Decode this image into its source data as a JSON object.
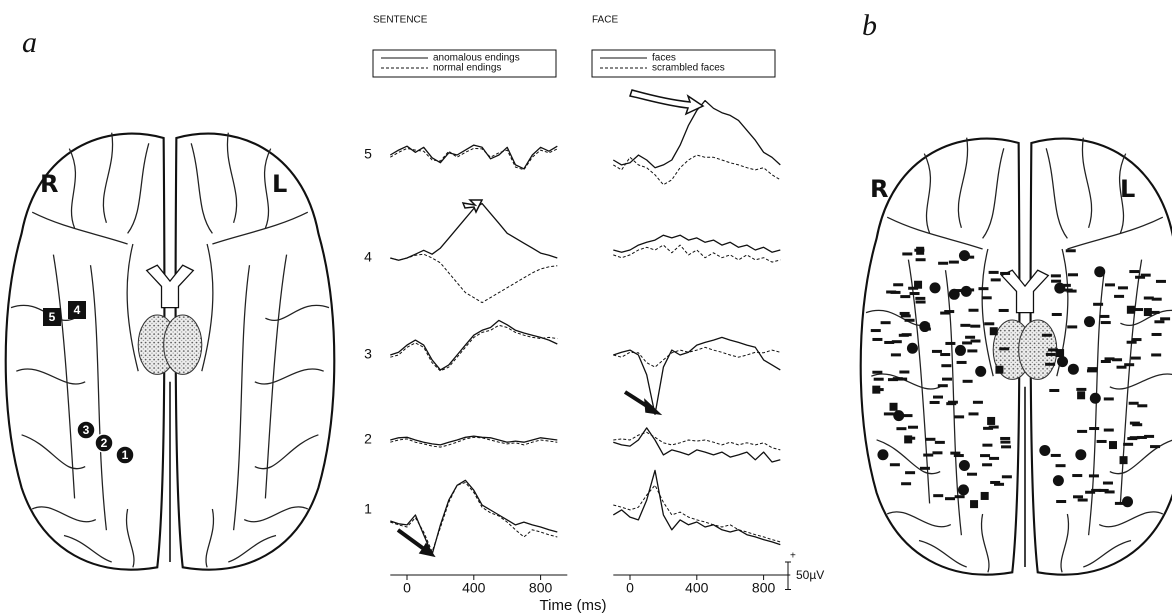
{
  "panel_labels": [
    "a",
    "b"
  ],
  "hemisphere_labels": [
    "R",
    "L"
  ],
  "electrodes": [
    "5",
    "4",
    "3",
    "2",
    "1"
  ],
  "xlabel": "Time (ms)",
  "scale_bar": {
    "value": 50,
    "label": "50µV",
    "sign": "+"
  },
  "chart_data": [
    {
      "type": "line",
      "title": "SENTENCE",
      "x": [
        -100,
        -50,
        0,
        50,
        100,
        150,
        200,
        250,
        300,
        350,
        400,
        450,
        500,
        550,
        600,
        650,
        700,
        750,
        800,
        850,
        900
      ],
      "xlim": [
        -100,
        900
      ],
      "xticks": [
        0,
        400,
        800
      ],
      "series": [
        {
          "name": "anomalous endings",
          "color": "#111111",
          "dashed": false,
          "values": [
            [
              0,
              9,
              16,
              5,
              14,
              -5,
              -14,
              4,
              0,
              9,
              18,
              14,
              -7,
              0,
              14,
              -18,
              -25,
              0,
              14,
              7,
              16
            ],
            [
              0,
              -4,
              0,
              7,
              14,
              7,
              18,
              36,
              54,
              72,
              90,
              99,
              81,
              63,
              45,
              36,
              27,
              18,
              9,
              5,
              0
            ],
            [
              0,
              5,
              18,
              27,
              18,
              -9,
              -27,
              -18,
              0,
              18,
              36,
              45,
              50,
              63,
              55,
              45,
              40,
              36,
              32,
              27,
              20
            ],
            [
              0,
              4,
              5,
              0,
              -4,
              -7,
              -9,
              -4,
              0,
              5,
              7,
              5,
              4,
              0,
              -4,
              -2,
              -4,
              0,
              4,
              2,
              0
            ],
            [
              -20,
              -25,
              -27,
              -9,
              -45,
              -81,
              -27,
              18,
              45,
              54,
              36,
              9,
              0,
              -9,
              -18,
              -27,
              -22,
              -27,
              -31,
              -36,
              -40
            ]
          ]
        },
        {
          "name": "normal endings",
          "color": "#111111",
          "dashed": true,
          "values": [
            [
              -4,
              5,
              12,
              9,
              7,
              -9,
              -11,
              7,
              -4,
              5,
              12,
              11,
              -4,
              4,
              9,
              -22,
              -27,
              -4,
              9,
              4,
              11
            ],
            [
              0,
              -4,
              0,
              5,
              7,
              0,
              -9,
              -27,
              -45,
              -63,
              -72,
              -81,
              -72,
              -63,
              -54,
              -45,
              -36,
              -27,
              -20,
              -16,
              -14
            ],
            [
              -4,
              0,
              14,
              22,
              14,
              -14,
              -29,
              -22,
              -4,
              14,
              32,
              41,
              45,
              54,
              50,
              41,
              36,
              32,
              30,
              32,
              30
            ],
            [
              -4,
              0,
              2,
              -4,
              -7,
              -11,
              -13,
              -9,
              -4,
              2,
              5,
              4,
              0,
              -4,
              -7,
              -5,
              -9,
              -4,
              0,
              -2,
              -4
            ],
            [
              -22,
              -27,
              -31,
              -14,
              -40,
              -76,
              -32,
              14,
              45,
              50,
              32,
              5,
              -5,
              -11,
              -22,
              -36,
              -49,
              -36,
              -40,
              -45,
              -49
            ]
          ]
        }
      ]
    },
    {
      "type": "line",
      "title": "FACE",
      "x": [
        -100,
        -50,
        0,
        50,
        100,
        150,
        200,
        250,
        300,
        350,
        400,
        450,
        500,
        550,
        600,
        650,
        700,
        750,
        800,
        850,
        900
      ],
      "xlim": [
        -100,
        900
      ],
      "xticks": [
        0,
        400,
        800
      ],
      "series": [
        {
          "name": "faces",
          "color": "#111111",
          "dashed": false,
          "values": [
            [
              0,
              -9,
              -5,
              9,
              0,
              -14,
              -9,
              0,
              27,
              63,
              90,
              108,
              94,
              86,
              81,
              72,
              54,
              36,
              14,
              5,
              -9
            ],
            [
              0,
              -4,
              0,
              9,
              14,
              18,
              27,
              22,
              27,
              18,
              22,
              14,
              18,
              9,
              14,
              5,
              9,
              0,
              5,
              -4,
              0
            ],
            [
              0,
              5,
              9,
              0,
              -36,
              -108,
              -22,
              9,
              0,
              5,
              18,
              23,
              27,
              32,
              27,
              23,
              18,
              14,
              -9,
              -18,
              -27
            ],
            [
              -4,
              -9,
              -11,
              0,
              22,
              0,
              -27,
              -18,
              -22,
              -27,
              -18,
              -22,
              -27,
              -22,
              -31,
              -27,
              -22,
              -36,
              -22,
              -40,
              -36
            ],
            [
              -18,
              -9,
              -22,
              -27,
              9,
              63,
              -18,
              -45,
              -27,
              -36,
              -31,
              -40,
              -36,
              -45,
              -49,
              -45,
              -54,
              -58,
              -63,
              -67,
              -72
            ]
          ]
        },
        {
          "name": "scrambled faces",
          "color": "#111111",
          "dashed": true,
          "values": [
            [
              -9,
              -18,
              5,
              -9,
              -14,
              -27,
              -45,
              -36,
              -14,
              0,
              9,
              5,
              5,
              0,
              -5,
              -9,
              -14,
              -18,
              -14,
              -27,
              -36
            ],
            [
              -9,
              -14,
              -9,
              0,
              5,
              0,
              9,
              -5,
              9,
              -9,
              0,
              -14,
              -5,
              -14,
              -9,
              -18,
              -9,
              -18,
              -14,
              -22,
              -18
            ],
            [
              0,
              -4,
              5,
              4,
              -14,
              -22,
              -9,
              4,
              9,
              5,
              9,
              14,
              9,
              5,
              0,
              -4,
              0,
              5,
              4,
              9,
              5
            ],
            [
              0,
              2,
              0,
              9,
              14,
              5,
              -5,
              -9,
              -5,
              0,
              -2,
              0,
              -4,
              -9,
              -4,
              -9,
              -5,
              -9,
              -5,
              -14,
              -18
            ],
            [
              0,
              -4,
              -9,
              -4,
              18,
              36,
              5,
              -18,
              -13,
              -22,
              -27,
              -31,
              -36,
              -40,
              -36,
              -45,
              -49,
              -54,
              -58,
              -63,
              -67
            ]
          ]
        }
      ]
    }
  ]
}
